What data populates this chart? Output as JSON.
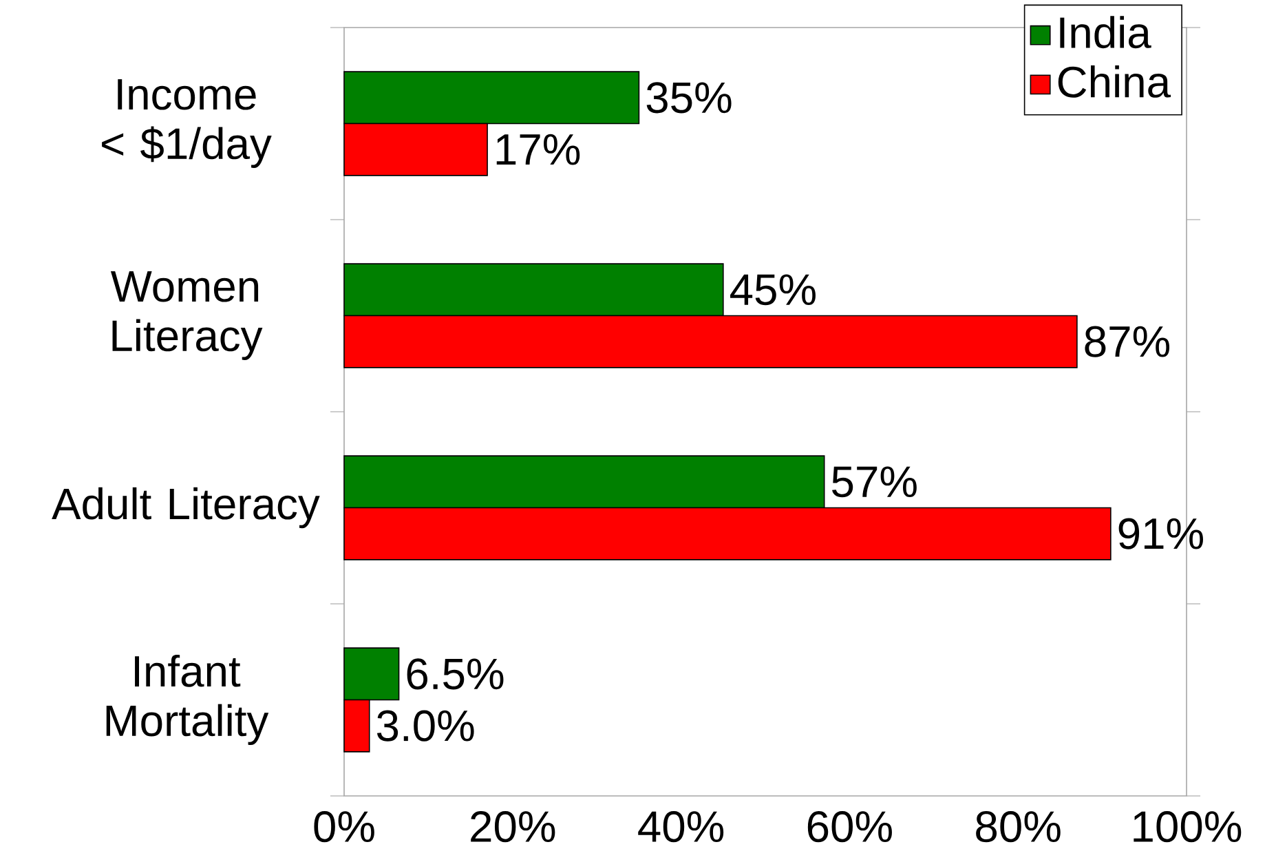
{
  "chart_data": {
    "type": "bar",
    "orientation": "horizontal",
    "categories": [
      "Income < $1/day",
      "Women Literacy",
      "Adult Literacy",
      "Infant Mortality"
    ],
    "series": [
      {
        "name": "India",
        "color": "#008000",
        "values": [
          35,
          45,
          57,
          6.5
        ],
        "value_labels": [
          "35%",
          "45%",
          "57%",
          "6.5%"
        ]
      },
      {
        "name": "China",
        "color": "#ff0000",
        "values": [
          17,
          87,
          91,
          3.0
        ],
        "value_labels": [
          "17%",
          "87%",
          "91%",
          "3.0%"
        ]
      }
    ],
    "xlim": [
      0,
      100
    ],
    "xticks": [
      {
        "value": 0,
        "label": "0%"
      },
      {
        "value": 20,
        "label": "20%"
      },
      {
        "value": 40,
        "label": "40%"
      },
      {
        "value": 60,
        "label": "60%"
      },
      {
        "value": 80,
        "label": "80%"
      },
      {
        "value": 100,
        "label": "100%"
      }
    ],
    "legend": "top right"
  }
}
